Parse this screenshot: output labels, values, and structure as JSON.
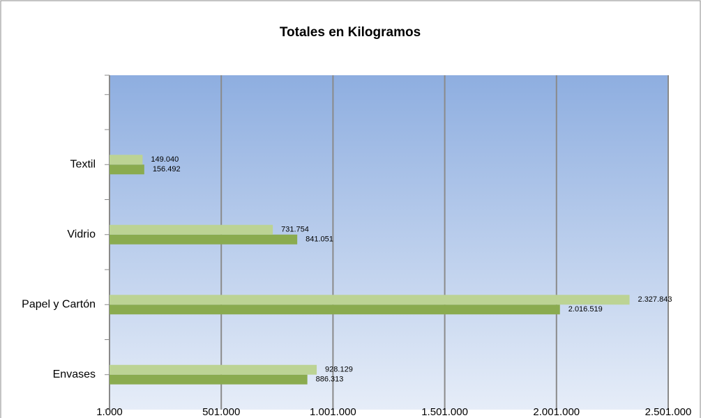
{
  "chart_data": {
    "type": "hbar",
    "title": "Totales en Kilogramos",
    "categories": [
      "Envases",
      "Papel y Cartón",
      "Vidrio",
      "Textil"
    ],
    "series": [
      {
        "color": "#8aab4f",
        "values": [
          886313,
          2016519,
          841051,
          156492
        ],
        "value_labels": [
          "886.313",
          "2.016.519",
          "841.051",
          "156.492"
        ]
      },
      {
        "color": "#bcd394",
        "values": [
          928129,
          2327843,
          731754,
          149040
        ],
        "value_labels": [
          "928.129",
          "2.327.843",
          "731.754",
          "149.040"
        ]
      }
    ],
    "xlim": [
      1000,
      2501000
    ],
    "xticks": [
      {
        "value": 1000,
        "label": "1.000"
      },
      {
        "value": 501000,
        "label": "501.000"
      },
      {
        "value": 1001000,
        "label": "1.001.000"
      },
      {
        "value": 1501000,
        "label": "1.501.000"
      },
      {
        "value": 2001000,
        "label": "2.001.000"
      },
      {
        "value": 2501000,
        "label": "2.501.000"
      }
    ],
    "grid": true
  }
}
